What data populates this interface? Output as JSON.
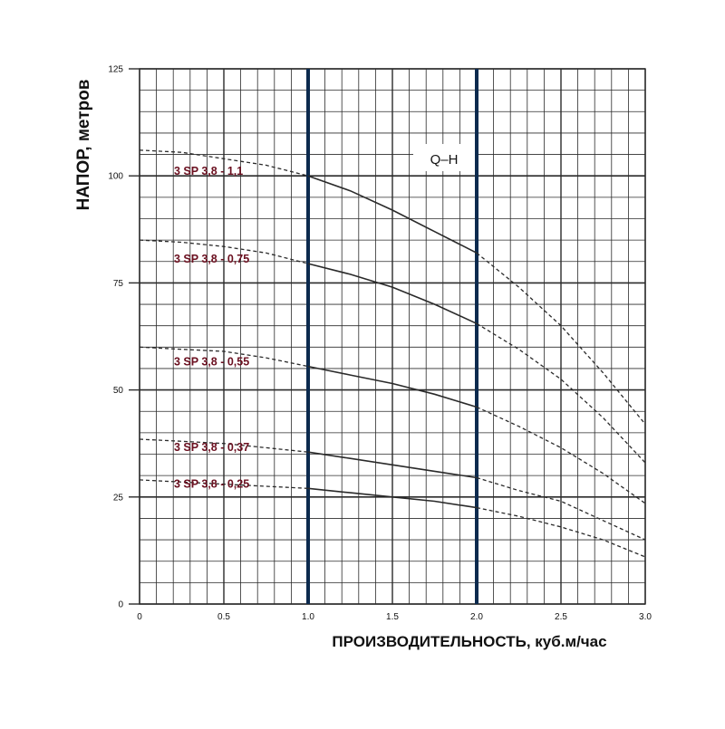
{
  "chart_data": {
    "type": "line",
    "title": "",
    "ylabel": "НАПОР, метров",
    "xlabel": "ПРОИЗВОДИТЕЛЬНОСТЬ, куб.м/час",
    "annotation": "Q–H",
    "xlim": [
      0,
      3.0
    ],
    "ylim": [
      0,
      125
    ],
    "x_ticks": [
      "0",
      "0.5",
      "1.0",
      "1.5",
      "2.0",
      "2.5",
      "3.0"
    ],
    "y_ticks": [
      "0",
      "25",
      "50",
      "75",
      "100",
      "125"
    ],
    "grid": true,
    "operating_range": [
      1.0,
      2.0
    ],
    "colors": {
      "grid": "#2b2b2b",
      "highlight": "#0c2a4e",
      "curve": "#2a2a2a",
      "label": "#6b1020",
      "text": "#111111"
    },
    "series": [
      {
        "name": "3 SP 3,8 - 1,1",
        "x": [
          0,
          0.25,
          0.5,
          0.75,
          1.0,
          1.25,
          1.5,
          1.75,
          2.0,
          2.25,
          2.5,
          2.75,
          3.0
        ],
        "y": [
          106,
          105.5,
          104,
          102.5,
          100,
          96.5,
          92,
          87,
          82,
          74,
          65,
          54,
          42
        ]
      },
      {
        "name": "3 SP 3,8 - 0,75",
        "x": [
          0,
          0.25,
          0.5,
          0.75,
          1.0,
          1.25,
          1.5,
          1.75,
          2.0,
          2.25,
          2.5,
          2.75,
          3.0
        ],
        "y": [
          85,
          84.5,
          83.5,
          82,
          79.5,
          77,
          74,
          70,
          65.5,
          59.5,
          52.5,
          43.5,
          33
        ]
      },
      {
        "name": "3 SP 3,8 - 0,55",
        "x": [
          0,
          0.25,
          0.5,
          0.75,
          1.0,
          1.25,
          1.5,
          1.75,
          2.0,
          2.25,
          2.5,
          2.75,
          3.0
        ],
        "y": [
          60,
          59.5,
          59,
          57.5,
          55.5,
          53.5,
          51.5,
          49,
          46,
          41.5,
          36.5,
          30.5,
          23.5
        ]
      },
      {
        "name": "3 SP 3,8 - 0,37",
        "x": [
          0,
          0.25,
          0.5,
          0.75,
          1.0,
          1.25,
          1.5,
          1.75,
          2.0,
          2.25,
          2.5,
          2.75,
          3.0
        ],
        "y": [
          38.5,
          38,
          37.5,
          36.5,
          35.5,
          34,
          32.5,
          31,
          29.5,
          26.5,
          24,
          19.5,
          15
        ]
      },
      {
        "name": "3 SP 3,8 - 0,25",
        "x": [
          0,
          0.25,
          0.5,
          0.75,
          1.0,
          1.25,
          1.5,
          1.75,
          2.0,
          2.25,
          2.5,
          2.75,
          3.0
        ],
        "y": [
          29,
          28.5,
          28,
          27.5,
          27,
          26,
          25,
          24,
          22.5,
          20.5,
          18,
          15,
          11
        ]
      }
    ]
  }
}
